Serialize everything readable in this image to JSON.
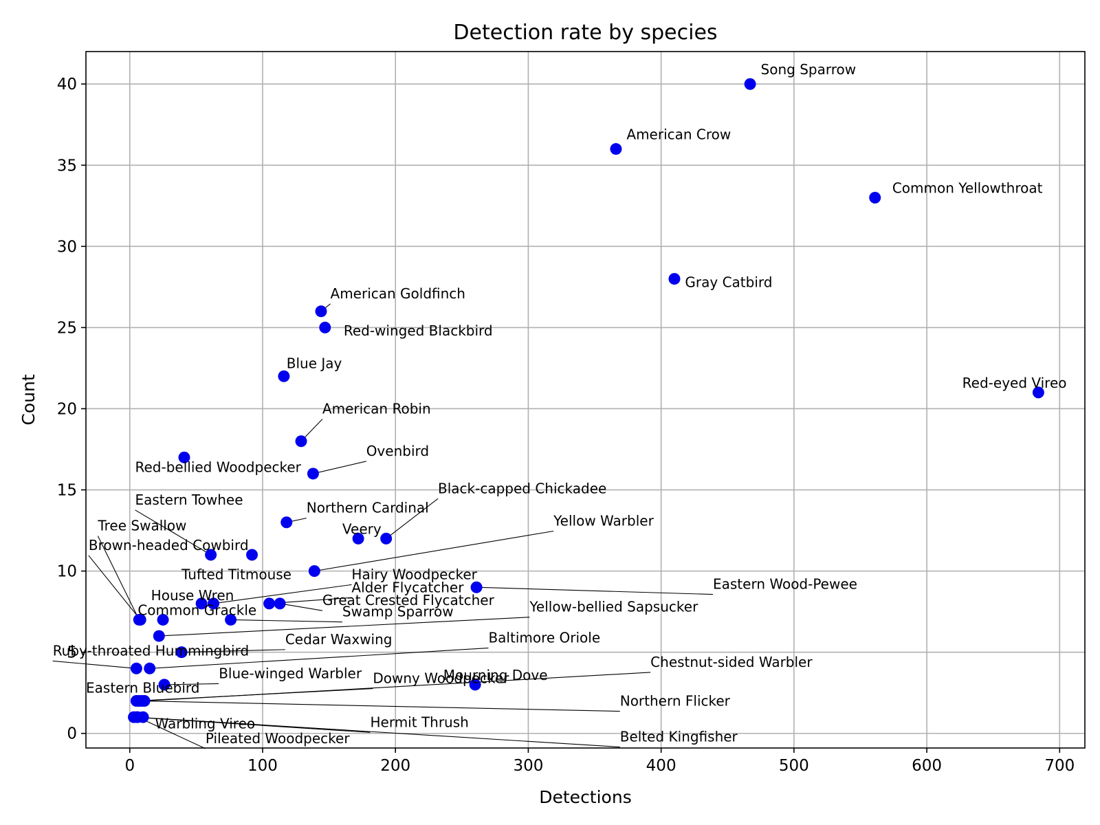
{
  "chart_data": {
    "type": "scatter",
    "title": "Detection rate by species",
    "xlabel": "Detections",
    "ylabel": "Count",
    "xlim": [
      -33,
      719
    ],
    "ylim": [
      -0.9,
      42
    ],
    "xticks": [
      0,
      100,
      200,
      300,
      400,
      500,
      600,
      700
    ],
    "yticks": [
      0,
      5,
      10,
      15,
      20,
      25,
      30,
      35,
      40
    ],
    "grid": true,
    "marker_color": "#0000ee",
    "points": [
      {
        "name": "Song Sparrow",
        "x": 467,
        "y": 40,
        "lx": 475,
        "ly": 40.6,
        "anchor": "start"
      },
      {
        "name": "American Crow",
        "x": 366,
        "y": 36,
        "lx": 374,
        "ly": 36.6,
        "anchor": "start"
      },
      {
        "name": "Common Yellowthroat",
        "x": 561,
        "y": 33,
        "lx": 574,
        "ly": 33.3,
        "anchor": "start"
      },
      {
        "name": "Gray Catbird",
        "x": 410,
        "y": 28,
        "lx": 418,
        "ly": 27.5,
        "anchor": "start"
      },
      {
        "name": "American Goldfinch",
        "x": 144,
        "y": 26,
        "lx": 151,
        "ly": 26.8,
        "anchor": "start",
        "leader": true
      },
      {
        "name": "Red-winged Blackbird",
        "x": 147,
        "y": 25,
        "lx": 161,
        "ly": 24.5,
        "anchor": "start"
      },
      {
        "name": "Blue Jay",
        "x": 116,
        "y": 22,
        "lx": 118,
        "ly": 22.5,
        "anchor": "start"
      },
      {
        "name": "Red-eyed Vireo",
        "x": 684,
        "y": 21,
        "lx": 666,
        "ly": 21.3,
        "anchor": "middle"
      },
      {
        "name": "American Robin",
        "x": 129,
        "y": 18,
        "lx": 145,
        "ly": 19.7,
        "anchor": "start",
        "leader": true
      },
      {
        "name": "Red-bellied Woodpecker",
        "x": 41,
        "y": 17,
        "lx": 4,
        "ly": 16.1,
        "anchor": "start"
      },
      {
        "name": "Ovenbird",
        "x": 138,
        "y": 16,
        "lx": 178,
        "ly": 17.1,
        "anchor": "start",
        "leader": true
      },
      {
        "name": "Northern Cardinal",
        "x": 118,
        "y": 13,
        "lx": 133,
        "ly": 13.6,
        "anchor": "start",
        "leader": true
      },
      {
        "name": "Black-capped Chickadee",
        "x": 193,
        "y": 12,
        "lx": 232,
        "ly": 14.8,
        "anchor": "start",
        "leader": true
      },
      {
        "name": "Veery",
        "x": 172,
        "y": 12,
        "lx": 160,
        "ly": 12.3,
        "anchor": "start"
      },
      {
        "name": "Eastern Towhee",
        "x": 61,
        "y": 11,
        "lx": 4,
        "ly": 14.1,
        "anchor": "start",
        "leader": true
      },
      {
        "name": "Tufted Titmouse",
        "x": 92,
        "y": 11,
        "lx": 39,
        "ly": 9.5,
        "anchor": "start"
      },
      {
        "name": "Yellow Warbler",
        "x": 139,
        "y": 10,
        "lx": 319,
        "ly": 12.8,
        "anchor": "start",
        "leader": true
      },
      {
        "name": "Tree Swallow",
        "x": 7,
        "y": 7,
        "lx": -24,
        "ly": 12.5,
        "anchor": "start",
        "leader": true
      },
      {
        "name": "Brown-headed Cowbird",
        "x": 8,
        "y": 7,
        "lx": -31,
        "ly": 11.3,
        "anchor": "start",
        "leader": true
      },
      {
        "name": "Hairy Woodpecker",
        "x": 63,
        "y": 8,
        "lx": 167,
        "ly": 9.5,
        "anchor": "start",
        "leader": true
      },
      {
        "name": "Eastern Wood-Pewee",
        "x": 261,
        "y": 9,
        "lx": 439,
        "ly": 8.9,
        "anchor": "start",
        "leader": true
      },
      {
        "name": "Alder Flycatcher",
        "x": 105,
        "y": 8,
        "lx": 167,
        "ly": 8.7,
        "anchor": "start",
        "leader": true
      },
      {
        "name": "House Wren",
        "x": 54,
        "y": 8,
        "lx": 16,
        "ly": 8.2,
        "anchor": "start"
      },
      {
        "name": "Great Crested Flycatcher",
        "x": 113,
        "y": 8,
        "lx": 145,
        "ly": 7.9,
        "anchor": "start",
        "leader": true
      },
      {
        "name": "Yellow-bellied Sapsucker",
        "x": 22,
        "y": 6,
        "lx": 301,
        "ly": 7.5,
        "anchor": "start",
        "leader": true
      },
      {
        "name": "Common Grackle",
        "x": 25,
        "y": 7,
        "lx": 6,
        "ly": 7.3,
        "anchor": "start"
      },
      {
        "name": "Swamp Sparrow",
        "x": 76,
        "y": 7,
        "lx": 160,
        "ly": 7.2,
        "anchor": "start",
        "leader": true
      },
      {
        "name": "Cedar Waxwing",
        "x": 39,
        "y": 5,
        "lx": 117,
        "ly": 5.5,
        "anchor": "start",
        "leader": true
      },
      {
        "name": "Ruby-throated Hummingbird",
        "x": 5,
        "y": 4,
        "lx": -58,
        "ly": 4.8,
        "anchor": "start",
        "leader": true
      },
      {
        "name": "Baltimore Oriole",
        "x": 15,
        "y": 4,
        "lx": 270,
        "ly": 5.6,
        "anchor": "start",
        "leader": true
      },
      {
        "name": "Blue-winged Warbler",
        "x": 26,
        "y": 3,
        "lx": 67,
        "ly": 3.4,
        "anchor": "start",
        "leader": true
      },
      {
        "name": "Chestnut-sided Warbler",
        "x": 11,
        "y": 2,
        "lx": 392,
        "ly": 4.1,
        "anchor": "start",
        "leader": true
      },
      {
        "name": "Mourning Dove",
        "x": 260,
        "y": 3,
        "lx": 236,
        "ly": 3.3,
        "anchor": "start"
      },
      {
        "name": "Downy Woodpecker",
        "x": 5,
        "y": 2,
        "lx": 183,
        "ly": 3.1,
        "anchor": "start",
        "leader": true
      },
      {
        "name": "Eastern Bluebird",
        "x": 7,
        "y": 2,
        "lx": -33,
        "ly": 2.5,
        "anchor": "start"
      },
      {
        "name": "Northern Flicker",
        "x": 9,
        "y": 2,
        "lx": 369,
        "ly": 1.7,
        "anchor": "start",
        "leader": true
      },
      {
        "name": "Hermit Thrush",
        "x": 3,
        "y": 1,
        "lx": 181,
        "ly": 0.4,
        "anchor": "start",
        "leader": true
      },
      {
        "name": "Belted Kingfisher",
        "x": 5,
        "y": 1,
        "lx": 369,
        "ly": -0.5,
        "anchor": "start",
        "leader": true
      },
      {
        "name": "Warbling Vireo",
        "x": 10,
        "y": 1,
        "lx": 19,
        "ly": 0.3,
        "anchor": "start"
      },
      {
        "name": "Pileated Woodpecker",
        "x": 6,
        "y": 1,
        "lx": 57,
        "ly": -0.6,
        "anchor": "start",
        "leader": true
      }
    ]
  }
}
